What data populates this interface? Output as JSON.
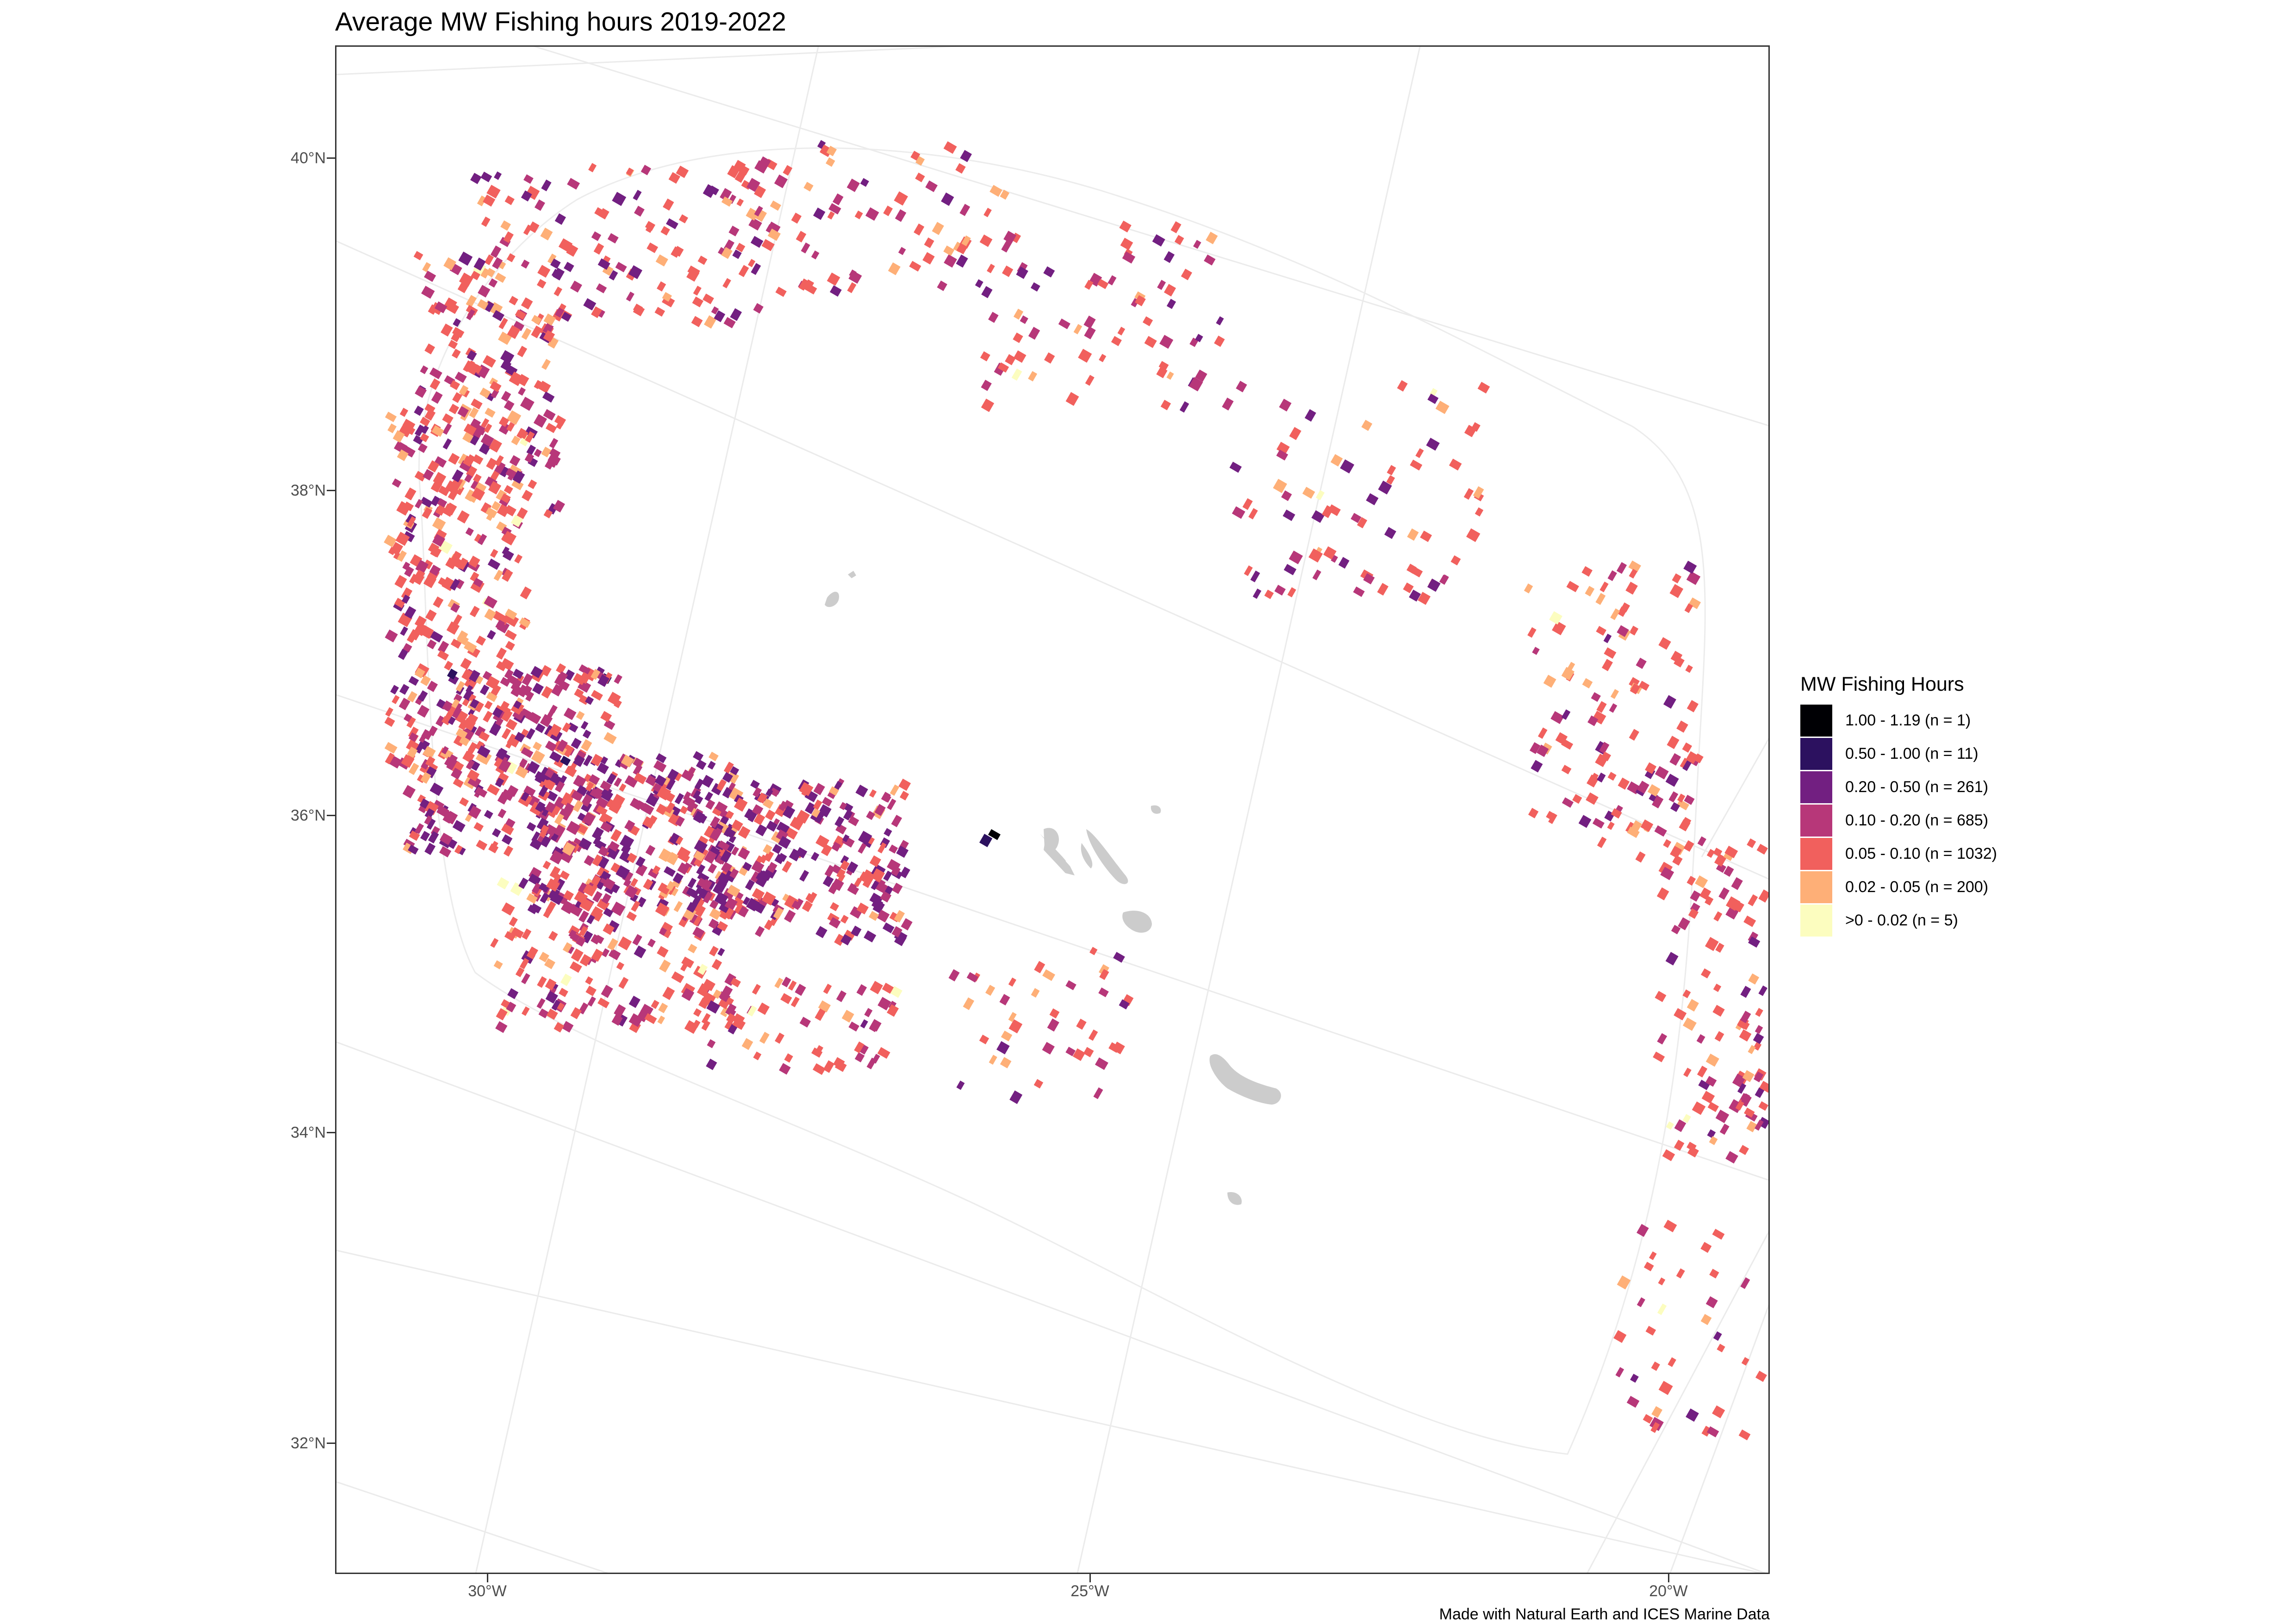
{
  "title": "Average MW Fishing hours 2019-2022",
  "caption": "Made with Natural Earth and ICES Marine Data",
  "axes": {
    "y_labels": [
      "40°N",
      "38°N",
      "36°N",
      "34°N",
      "32°N"
    ],
    "x_labels": [
      "30°W",
      "25°W",
      "20°W"
    ]
  },
  "legend": {
    "title": "MW Fishing Hours",
    "items": [
      {
        "label": "1.00 - 1.19 (n = 1)",
        "color": "#000004"
      },
      {
        "label": "0.50 - 1.00 (n = 11)",
        "color": "#2c115f"
      },
      {
        "label": "0.20 - 0.50 (n = 261)",
        "color": "#721f81"
      },
      {
        "label": "0.10 - 0.20 (n = 685)",
        "color": "#b73779"
      },
      {
        "label": "0.05 - 0.10 (n = 1032)",
        "color": "#f1605d"
      },
      {
        "label": "0.02 - 0.05 (n = 200)",
        "color": "#feaf77"
      },
      {
        "label": ">0 - 0.02 (n = 5)",
        "color": "#fcfdbf"
      }
    ]
  },
  "colors": {
    "land": "#cccccc",
    "graticule": "#ebebeb",
    "boundary": "#ececec"
  },
  "icons": [
    "island-shapes",
    "fishing-cells"
  ]
}
